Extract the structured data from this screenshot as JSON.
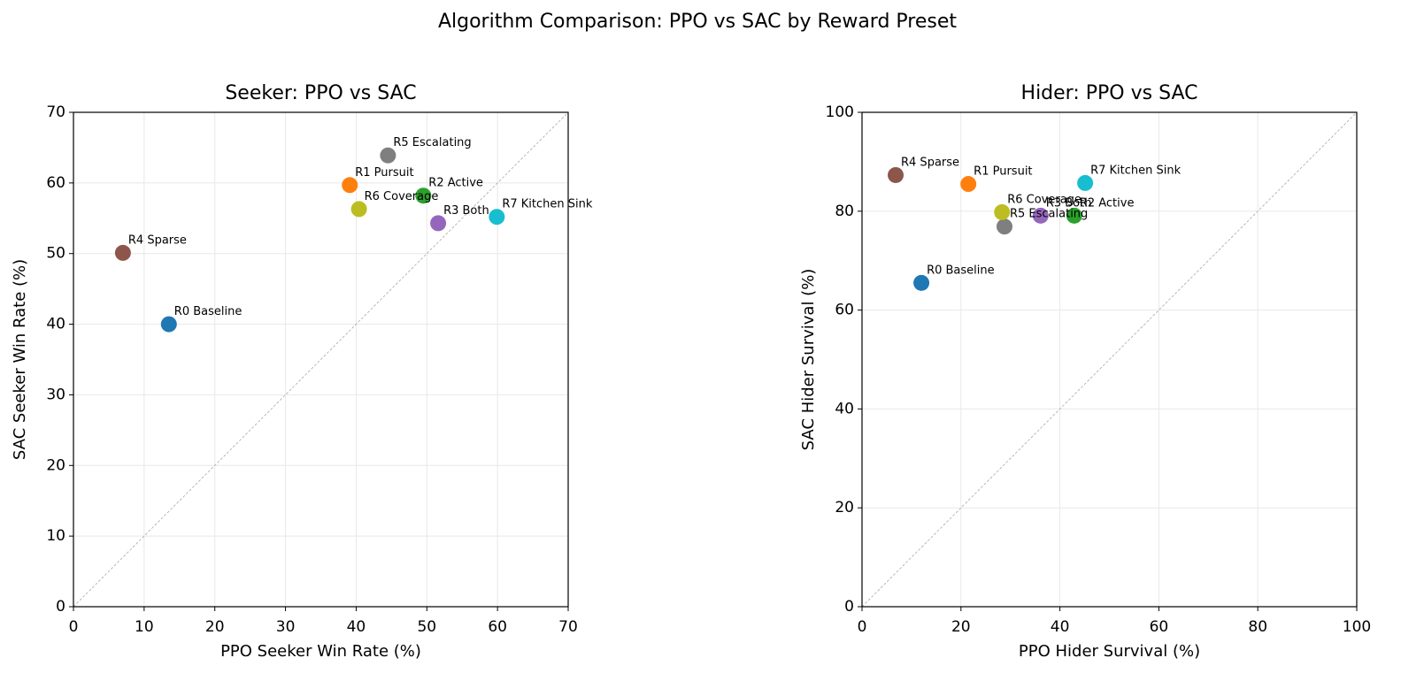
{
  "title": "Algorithm Comparison: PPO vs SAC by Reward Preset",
  "chart_data": [
    {
      "type": "scatter",
      "title": "Seeker: PPO vs SAC",
      "xlabel": "PPO Seeker Win Rate (%)",
      "ylabel": "SAC Seeker Win Rate (%)",
      "labels": [
        "R0 Baseline",
        "R1 Pursuit",
        "R2 Active",
        "R3 Both",
        "R4 Sparse",
        "R5 Escalating",
        "R6 Coverage",
        "R7 Kitchen Sink"
      ],
      "x": [
        13.5,
        39.1,
        49.5,
        51.6,
        7.0,
        44.5,
        40.4,
        59.9
      ],
      "y": [
        40.0,
        59.7,
        58.2,
        54.3,
        50.1,
        63.9,
        56.3,
        55.2
      ],
      "colors": [
        "#1f77b4",
        "#ff7f0e",
        "#2ca02c",
        "#9467bd",
        "#8c564b",
        "#7f7f7f",
        "#bcbd22",
        "#17becf"
      ],
      "xlim": [
        0,
        70
      ],
      "ylim": [
        0,
        70
      ],
      "xticks": [
        0,
        10,
        20,
        30,
        40,
        50,
        60,
        70
      ],
      "yticks": [
        0,
        10,
        20,
        30,
        40,
        50,
        60,
        70
      ],
      "grid": true,
      "diagonal": true
    },
    {
      "type": "scatter",
      "title": "Hider: PPO vs SAC",
      "xlabel": "PPO Hider Survival (%)",
      "ylabel": "SAC Hider Survival (%)",
      "labels": [
        "R0 Baseline",
        "R1 Pursuit",
        "R2 Active",
        "R3 Both",
        "R4 Sparse",
        "R5 Escalating",
        "R6 Coverage",
        "R7 Kitchen Sink"
      ],
      "x": [
        12.0,
        21.5,
        42.9,
        36.1,
        6.8,
        28.8,
        28.3,
        45.1
      ],
      "y": [
        65.5,
        85.5,
        79.1,
        79.1,
        87.3,
        76.9,
        79.8,
        85.7
      ],
      "colors": [
        "#1f77b4",
        "#ff7f0e",
        "#2ca02c",
        "#9467bd",
        "#8c564b",
        "#7f7f7f",
        "#bcbd22",
        "#17becf"
      ],
      "xlim": [
        0,
        100
      ],
      "ylim": [
        0,
        100
      ],
      "xticks": [
        0,
        20,
        40,
        60,
        80,
        100
      ],
      "yticks": [
        0,
        20,
        40,
        60,
        80,
        100
      ],
      "grid": true,
      "diagonal": true
    }
  ]
}
